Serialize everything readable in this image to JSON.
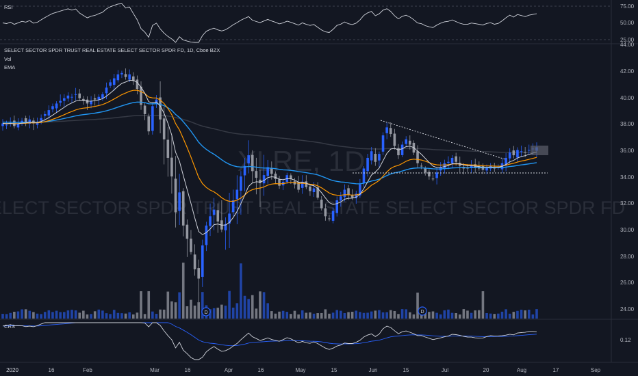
{
  "header": {
    "title": "SELECT SECTOR SPDR TRUST REAL ESTATE SELECT SECTOR SPDR FD, 1D, Cboe BZX",
    "indicator_vol": "Vol",
    "indicator_ema": "EMA"
  },
  "watermark": {
    "symbol": "XLRE, 1D",
    "name": "SELECT SECTOR SPDR TRUST REAL ESTATE SELECT SECTOR SPDR FD"
  },
  "rsi_panel": {
    "label": "RSI",
    "levels": [
      "75.00",
      "50.00",
      "25.00"
    ]
  },
  "crs_panel": {
    "label": "CRS",
    "level": "0.12"
  },
  "price_axis": [
    "44.00",
    "42.00",
    "40.00",
    "38.00",
    "36.00",
    "34.00",
    "32.00",
    "30.00",
    "28.00",
    "26.00",
    "24.00"
  ],
  "time_axis": [
    "2020",
    "16",
    "Feb",
    "Mar",
    "16",
    "Apr",
    "16",
    "May",
    "15",
    "Jun",
    "15",
    "Jul",
    "20",
    "Aug",
    "17",
    "Sep"
  ],
  "dividend_marker": "D",
  "colors": {
    "background": "#131722",
    "up_candle": "#2962ff",
    "down_candle": "#9598a1",
    "ema_fast": "#d1d4dc",
    "ema_mid": "#ff9800",
    "ema_slow": "#2196f3",
    "ema_long": "#363a45",
    "rsi_line": "#d1d4dc"
  },
  "chart_data": {
    "type": "candlestick",
    "title": "SELECT SECTOR SPDR TRUST REAL ESTATE SELECT SECTOR SPDR FD, 1D, Cboe BZX",
    "price_range": [
      23,
      44
    ],
    "closes": [
      38.2,
      38.1,
      38.3,
      38.0,
      38.2,
      38.4,
      38.3,
      38.5,
      38.2,
      38.3,
      38.6,
      38.9,
      39.2,
      39.5,
      39.7,
      39.9,
      40.1,
      40.3,
      40.2,
      40.4,
      40.1,
      39.9,
      39.7,
      39.9,
      40.0,
      40.2,
      40.4,
      40.9,
      41.3,
      41.6,
      41.9,
      42.0,
      41.7,
      41.9,
      41.4,
      40.8,
      39.6,
      38.9,
      37.6,
      39.5,
      40.0,
      38.5,
      37.0,
      35.6,
      34.2,
      31.5,
      33.0,
      30.5,
      29.5,
      28.5,
      27.2,
      26.5,
      29.0,
      30.5,
      31.2,
      31.7,
      30.8,
      30.2,
      30.6,
      31.4,
      32.4,
      33.2,
      34.2,
      35.0,
      35.8,
      34.6,
      34.1,
      33.7,
      34.3,
      34.9,
      34.4,
      34.0,
      33.5,
      33.8,
      34.3,
      34.0,
      33.6,
      33.2,
      33.8,
      33.4,
      33.1,
      33.3,
      32.6,
      31.8,
      31.2,
      31.0,
      31.6,
      32.4,
      32.7,
      33.2,
      32.8,
      32.6,
      32.9,
      33.6,
      34.8,
      35.6,
      36.1,
      35.3,
      35.9,
      37.3,
      37.9,
      37.4,
      36.5,
      35.8,
      36.6,
      37.0,
      36.6,
      36.0,
      35.2,
      35.0,
      34.5,
      34.2,
      34.0,
      34.5,
      34.9,
      35.2,
      35.3,
      35.6,
      35.3,
      35.0,
      34.8,
      34.8,
      35.0,
      34.9,
      34.8,
      34.7,
      34.9,
      35.0,
      34.8,
      34.9,
      35.2,
      35.6,
      36.0,
      35.8,
      36.2,
      36.1,
      36.0,
      36.2,
      36.3,
      36.4
    ],
    "volume_scale": "relative",
    "indicators": [
      "RSI",
      "Vol",
      "EMA",
      "CRS"
    ],
    "x_ticks": [
      "2020",
      "16",
      "Feb",
      "Mar",
      "16",
      "Apr",
      "16",
      "May",
      "15",
      "Jun",
      "15",
      "Jul",
      "20",
      "Aug",
      "17",
      "Sep"
    ],
    "y_ticks": [
      44,
      42,
      40,
      38,
      36,
      34,
      32,
      30,
      28,
      26,
      24
    ]
  }
}
